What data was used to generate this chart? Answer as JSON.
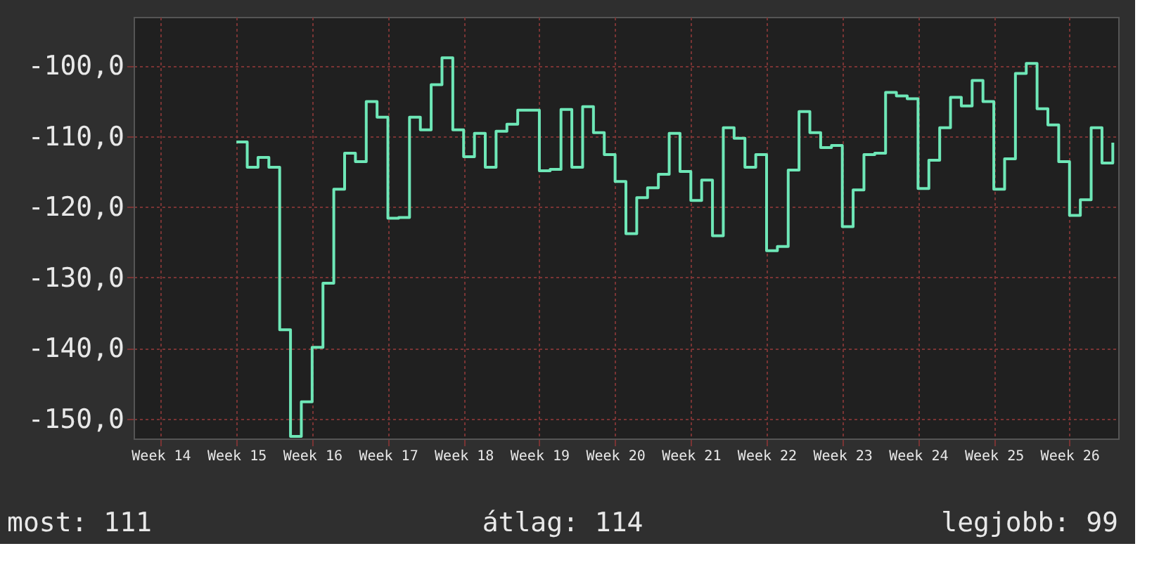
{
  "chart_data": {
    "type": "step",
    "categories": [
      null,
      null,
      "Week 14",
      null,
      null,
      null,
      null,
      null,
      null,
      "Week 15",
      null,
      null,
      null,
      null,
      null,
      null,
      "Week 16",
      null,
      null,
      null,
      null,
      null,
      null,
      "Week 17",
      null,
      null,
      null,
      null,
      null,
      null,
      "Week 18",
      null,
      null,
      null,
      null,
      null,
      null,
      "Week 19",
      null,
      null,
      null,
      null,
      null,
      null,
      "Week 20",
      null,
      null,
      null,
      null,
      null,
      null,
      "Week 21",
      null,
      null,
      null,
      null,
      null,
      null,
      "Week 22",
      null,
      null,
      null,
      null,
      null,
      null,
      "Week 23",
      null,
      null,
      null,
      null,
      null,
      null,
      "Week 24",
      null,
      null,
      null,
      null,
      null,
      null,
      "Week 25",
      null,
      null,
      null,
      null,
      null,
      null,
      "Week 26",
      null,
      null,
      null,
      null
    ],
    "series": [
      {
        "color": "#6ee7b7",
        "values": [
          null,
          null,
          null,
          null,
          null,
          null,
          null,
          null,
          null,
          -110.8,
          -114.4,
          -113.0,
          -114.4,
          -137.4,
          -152.5,
          -147.6,
          -139.9,
          -130.8,
          -117.5,
          -112.4,
          -113.6,
          -105.1,
          -107.3,
          -121.6,
          -121.5,
          -107.3,
          -109.1,
          -102.7,
          -98.9,
          -109.1,
          -112.9,
          -109.6,
          -114.4,
          -109.3,
          -108.3,
          -106.3,
          -106.3,
          -114.9,
          -114.7,
          -106.2,
          -114.4,
          -105.8,
          -109.5,
          -112.6,
          -116.4,
          -123.8,
          -118.7,
          -117.3,
          -115.4,
          -109.6,
          -115.0,
          -119.1,
          -116.2,
          -124.1,
          -108.8,
          -110.3,
          -114.4,
          -112.6,
          -126.2,
          -125.6,
          -114.8,
          -106.5,
          -109.5,
          -111.6,
          -111.3,
          -122.8,
          -117.6,
          -112.6,
          -112.4,
          -103.8,
          -104.3,
          -104.7,
          -117.4,
          -113.4,
          -108.8,
          -104.5,
          -105.7,
          -102.1,
          -105.1,
          -117.5,
          -113.2,
          -101.1,
          -99.7,
          -106.1,
          -108.4,
          -113.6,
          -121.2,
          -119.0,
          -108.8,
          -113.8,
          -110.9
        ]
      }
    ],
    "ylim": [
      -152.8,
      -93.1
    ],
    "yticks": [
      {
        "value": -100,
        "label": "-100,0"
      },
      {
        "value": -110,
        "label": "-110,0"
      },
      {
        "value": -120,
        "label": "-120,0"
      },
      {
        "value": -130,
        "label": "-130,0"
      },
      {
        "value": -140,
        "label": "-140,0"
      },
      {
        "value": -150,
        "label": "-150,0"
      }
    ],
    "grid": true,
    "annotations": [
      "most: 111",
      "átlag: 114",
      "legjobb: 99"
    ]
  }
}
